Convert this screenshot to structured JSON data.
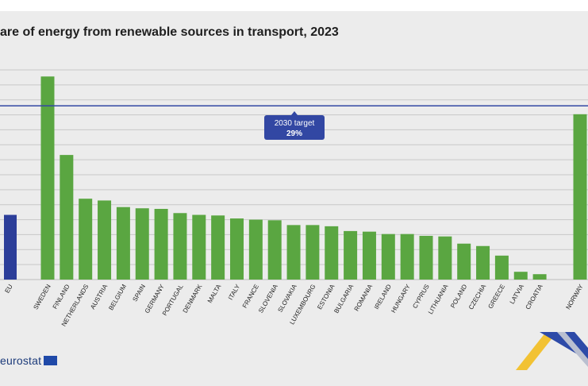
{
  "chart_data": {
    "type": "bar",
    "title": "are of energy from renewable sources in transport, 2023",
    "xlabel": "",
    "ylabel": "",
    "ylim": [
      0,
      35
    ],
    "grid": true,
    "categories": [
      "EU",
      "SWEDEN",
      "FINLAND",
      "NETHERLANDS",
      "AUSTRIA",
      "BELGIUM",
      "SPAIN",
      "GERMANY",
      "PORTUGAL",
      "DENMARK",
      "MALTA",
      "ITALY",
      "FRANCE",
      "SLOVENIA",
      "SLOVAKIA",
      "LUXEMBOURG",
      "ESTONIA",
      "BULGARIA",
      "ROMANIA",
      "IRELAND",
      "HUNGARY",
      "CYPRUS",
      "LITHUANIA",
      "POLAND",
      "CZECHIA",
      "GREECE",
      "LATVIA",
      "CROATIA",
      "NORWAY"
    ],
    "values": [
      10.8,
      33.9,
      20.8,
      13.5,
      13.2,
      12.1,
      11.9,
      11.8,
      11.1,
      10.8,
      10.7,
      10.2,
      10.0,
      9.9,
      9.1,
      9.1,
      8.9,
      8.1,
      8.0,
      7.6,
      7.6,
      7.3,
      7.2,
      6.0,
      5.6,
      4.0,
      1.3,
      0.9,
      27.6
    ],
    "target": {
      "label": "2030 target",
      "value_label": "29%",
      "value": 29
    }
  },
  "footer": {
    "logo_text": "eurostat"
  },
  "colors": {
    "eu_bar": "#2c3e99",
    "country_bar": "#5aa641",
    "target_line": "#3247a3",
    "grid": "#c8c8c8",
    "background": "#ececec"
  }
}
